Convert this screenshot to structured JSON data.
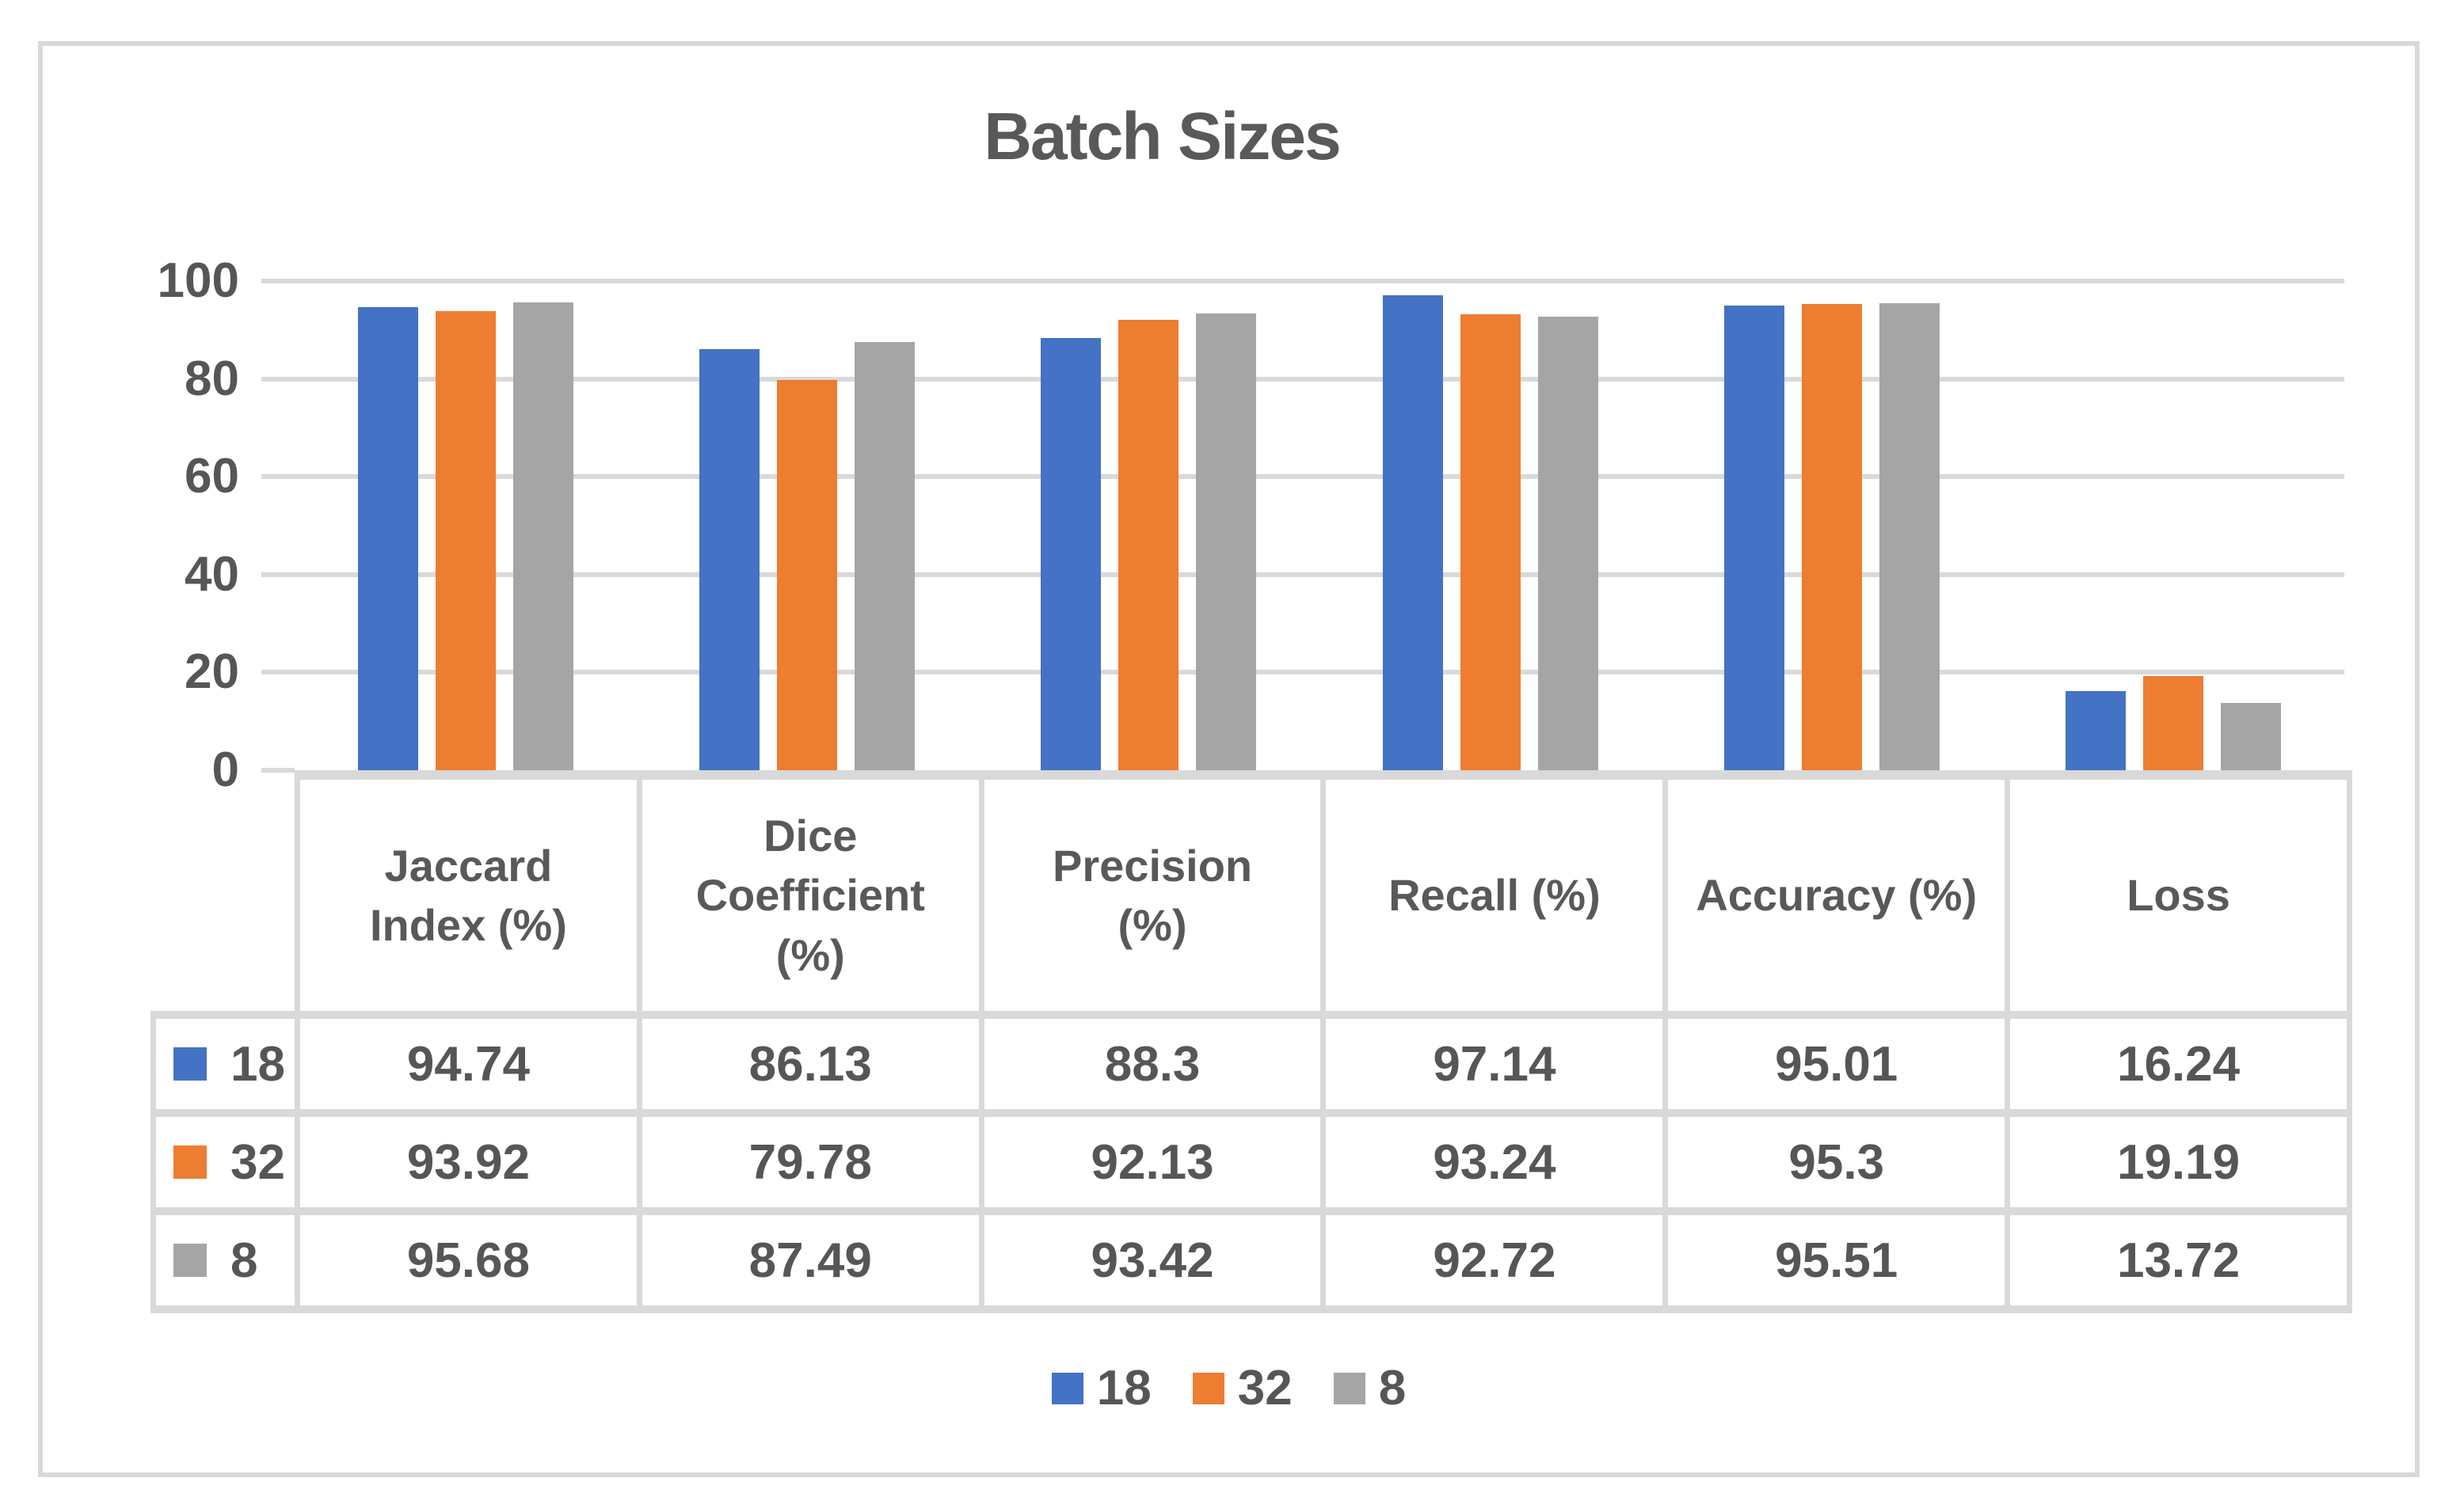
{
  "chart_data": {
    "type": "bar",
    "title": "Batch Sizes",
    "categories": [
      "Jaccard Index (%)",
      "Dice Coefficient (%)",
      "Precision\n(%)",
      "Recall (%)",
      "Accuracy (%)",
      "Loss"
    ],
    "series": [
      {
        "name": "18",
        "color": "#4472C4",
        "values": [
          94.74,
          86.13,
          88.3,
          97.14,
          95.01,
          16.24
        ]
      },
      {
        "name": "32",
        "color": "#ED7D31",
        "values": [
          93.92,
          79.78,
          92.13,
          93.24,
          95.3,
          19.19
        ]
      },
      {
        "name": "8",
        "color": "#A5A5A5",
        "values": [
          95.68,
          87.49,
          93.42,
          92.72,
          95.51,
          13.72
        ]
      }
    ],
    "ylim": [
      0,
      100
    ],
    "yticks": [
      0,
      20,
      40,
      60,
      80,
      100
    ],
    "grid": true,
    "legend_position": "bottom",
    "data_table": true
  },
  "colors": {
    "text": "#595959",
    "grid": "#D9D9D9",
    "background": "#FFFFFF"
  }
}
